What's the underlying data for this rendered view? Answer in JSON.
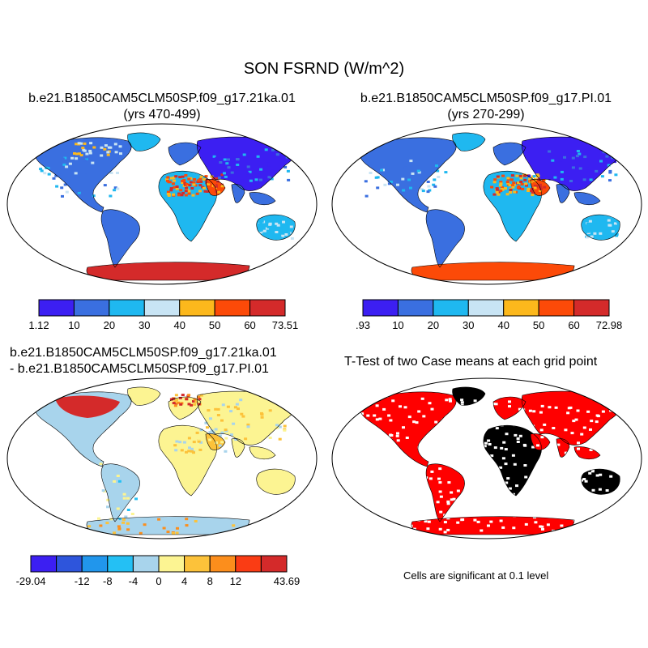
{
  "main_title": "SON FSRND (W/m^2)",
  "panels": [
    {
      "title1": "b.e21.B1850CAM5CLM50SP.f09_g17.21ka.01",
      "title2": "(yrs 470-499)"
    },
    {
      "title1": "b.e21.B1850CAM5CLM50SP.f09_g17.PI.01",
      "title2": "(yrs 270-299)"
    },
    {
      "title1": "b.e21.B1850CAM5CLM50SP.f09_g17.21ka.01",
      "title2": "- b.e21.B1850CAM5CLM50SP.f09_g17.PI.01"
    },
    {
      "title1": "T-Test of two Case means at each grid point"
    }
  ],
  "colorbars": [
    {
      "colors": [
        "#3c1ff2",
        "#3a6fe0",
        "#1fb8f0",
        "#c8e4f4",
        "#fcb81c",
        "#fc4a08",
        "#d42a2a"
      ],
      "labels": [
        "1.12",
        "10",
        "20",
        "30",
        "40",
        "50",
        "60",
        "73.51"
      ]
    },
    {
      "colors": [
        "#3c1ff2",
        "#3a6fe0",
        "#1fb8f0",
        "#c8e4f4",
        "#fcb81c",
        "#fc4a08",
        "#d42a2a"
      ],
      "labels": [
        ".93",
        "10",
        "20",
        "30",
        "40",
        "50",
        "60",
        "72.98"
      ]
    },
    {
      "colors": [
        "#3c1ff2",
        "#2e55dc",
        "#2196ec",
        "#24c0f4",
        "#a8d4ec",
        "#fcf492",
        "#fcc23a",
        "#fc8e1c",
        "#fa3c14",
        "#d42a2a"
      ],
      "labels": [
        "-29.04",
        "",
        "-12",
        "-8",
        "-4",
        "0",
        "4",
        "8",
        "12",
        "",
        "43.69"
      ]
    }
  ],
  "significance_note": "Cells are significant at 0.1 level",
  "colors": {
    "ocean": "#ffffff",
    "significant": "#ff0000",
    "coast": "#000000"
  }
}
